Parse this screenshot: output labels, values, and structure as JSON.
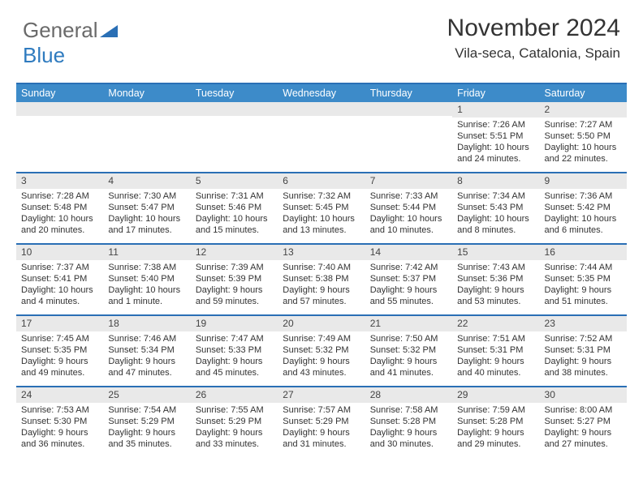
{
  "logo": {
    "part1": "General",
    "part2": "Blue"
  },
  "title": {
    "month": "November 2024",
    "location": "Vila-seca, Catalonia, Spain"
  },
  "style": {
    "accent_color": "#2a6fb5",
    "header_bg": "#3d8bc9",
    "header_text_color": "#ffffff",
    "daynum_bg": "#e9e9e9",
    "text_color": "#333333",
    "body_bg": "#ffffff",
    "fontsize_title": 30,
    "fontsize_location": 17,
    "fontsize_header": 12.5,
    "fontsize_body": 11
  },
  "day_headers": [
    "Sunday",
    "Monday",
    "Tuesday",
    "Wednesday",
    "Thursday",
    "Friday",
    "Saturday"
  ],
  "weeks": [
    [
      {
        "day": "",
        "lines": []
      },
      {
        "day": "",
        "lines": []
      },
      {
        "day": "",
        "lines": []
      },
      {
        "day": "",
        "lines": []
      },
      {
        "day": "",
        "lines": []
      },
      {
        "day": "1",
        "lines": [
          "Sunrise: 7:26 AM",
          "Sunset: 5:51 PM",
          "Daylight: 10 hours",
          "and 24 minutes."
        ]
      },
      {
        "day": "2",
        "lines": [
          "Sunrise: 7:27 AM",
          "Sunset: 5:50 PM",
          "Daylight: 10 hours",
          "and 22 minutes."
        ]
      }
    ],
    [
      {
        "day": "3",
        "lines": [
          "Sunrise: 7:28 AM",
          "Sunset: 5:48 PM",
          "Daylight: 10 hours",
          "and 20 minutes."
        ]
      },
      {
        "day": "4",
        "lines": [
          "Sunrise: 7:30 AM",
          "Sunset: 5:47 PM",
          "Daylight: 10 hours",
          "and 17 minutes."
        ]
      },
      {
        "day": "5",
        "lines": [
          "Sunrise: 7:31 AM",
          "Sunset: 5:46 PM",
          "Daylight: 10 hours",
          "and 15 minutes."
        ]
      },
      {
        "day": "6",
        "lines": [
          "Sunrise: 7:32 AM",
          "Sunset: 5:45 PM",
          "Daylight: 10 hours",
          "and 13 minutes."
        ]
      },
      {
        "day": "7",
        "lines": [
          "Sunrise: 7:33 AM",
          "Sunset: 5:44 PM",
          "Daylight: 10 hours",
          "and 10 minutes."
        ]
      },
      {
        "day": "8",
        "lines": [
          "Sunrise: 7:34 AM",
          "Sunset: 5:43 PM",
          "Daylight: 10 hours",
          "and 8 minutes."
        ]
      },
      {
        "day": "9",
        "lines": [
          "Sunrise: 7:36 AM",
          "Sunset: 5:42 PM",
          "Daylight: 10 hours",
          "and 6 minutes."
        ]
      }
    ],
    [
      {
        "day": "10",
        "lines": [
          "Sunrise: 7:37 AM",
          "Sunset: 5:41 PM",
          "Daylight: 10 hours",
          "and 4 minutes."
        ]
      },
      {
        "day": "11",
        "lines": [
          "Sunrise: 7:38 AM",
          "Sunset: 5:40 PM",
          "Daylight: 10 hours",
          "and 1 minute."
        ]
      },
      {
        "day": "12",
        "lines": [
          "Sunrise: 7:39 AM",
          "Sunset: 5:39 PM",
          "Daylight: 9 hours",
          "and 59 minutes."
        ]
      },
      {
        "day": "13",
        "lines": [
          "Sunrise: 7:40 AM",
          "Sunset: 5:38 PM",
          "Daylight: 9 hours",
          "and 57 minutes."
        ]
      },
      {
        "day": "14",
        "lines": [
          "Sunrise: 7:42 AM",
          "Sunset: 5:37 PM",
          "Daylight: 9 hours",
          "and 55 minutes."
        ]
      },
      {
        "day": "15",
        "lines": [
          "Sunrise: 7:43 AM",
          "Sunset: 5:36 PM",
          "Daylight: 9 hours",
          "and 53 minutes."
        ]
      },
      {
        "day": "16",
        "lines": [
          "Sunrise: 7:44 AM",
          "Sunset: 5:35 PM",
          "Daylight: 9 hours",
          "and 51 minutes."
        ]
      }
    ],
    [
      {
        "day": "17",
        "lines": [
          "Sunrise: 7:45 AM",
          "Sunset: 5:35 PM",
          "Daylight: 9 hours",
          "and 49 minutes."
        ]
      },
      {
        "day": "18",
        "lines": [
          "Sunrise: 7:46 AM",
          "Sunset: 5:34 PM",
          "Daylight: 9 hours",
          "and 47 minutes."
        ]
      },
      {
        "day": "19",
        "lines": [
          "Sunrise: 7:47 AM",
          "Sunset: 5:33 PM",
          "Daylight: 9 hours",
          "and 45 minutes."
        ]
      },
      {
        "day": "20",
        "lines": [
          "Sunrise: 7:49 AM",
          "Sunset: 5:32 PM",
          "Daylight: 9 hours",
          "and 43 minutes."
        ]
      },
      {
        "day": "21",
        "lines": [
          "Sunrise: 7:50 AM",
          "Sunset: 5:32 PM",
          "Daylight: 9 hours",
          "and 41 minutes."
        ]
      },
      {
        "day": "22",
        "lines": [
          "Sunrise: 7:51 AM",
          "Sunset: 5:31 PM",
          "Daylight: 9 hours",
          "and 40 minutes."
        ]
      },
      {
        "day": "23",
        "lines": [
          "Sunrise: 7:52 AM",
          "Sunset: 5:31 PM",
          "Daylight: 9 hours",
          "and 38 minutes."
        ]
      }
    ],
    [
      {
        "day": "24",
        "lines": [
          "Sunrise: 7:53 AM",
          "Sunset: 5:30 PM",
          "Daylight: 9 hours",
          "and 36 minutes."
        ]
      },
      {
        "day": "25",
        "lines": [
          "Sunrise: 7:54 AM",
          "Sunset: 5:29 PM",
          "Daylight: 9 hours",
          "and 35 minutes."
        ]
      },
      {
        "day": "26",
        "lines": [
          "Sunrise: 7:55 AM",
          "Sunset: 5:29 PM",
          "Daylight: 9 hours",
          "and 33 minutes."
        ]
      },
      {
        "day": "27",
        "lines": [
          "Sunrise: 7:57 AM",
          "Sunset: 5:29 PM",
          "Daylight: 9 hours",
          "and 31 minutes."
        ]
      },
      {
        "day": "28",
        "lines": [
          "Sunrise: 7:58 AM",
          "Sunset: 5:28 PM",
          "Daylight: 9 hours",
          "and 30 minutes."
        ]
      },
      {
        "day": "29",
        "lines": [
          "Sunrise: 7:59 AM",
          "Sunset: 5:28 PM",
          "Daylight: 9 hours",
          "and 29 minutes."
        ]
      },
      {
        "day": "30",
        "lines": [
          "Sunrise: 8:00 AM",
          "Sunset: 5:27 PM",
          "Daylight: 9 hours",
          "and 27 minutes."
        ]
      }
    ]
  ]
}
